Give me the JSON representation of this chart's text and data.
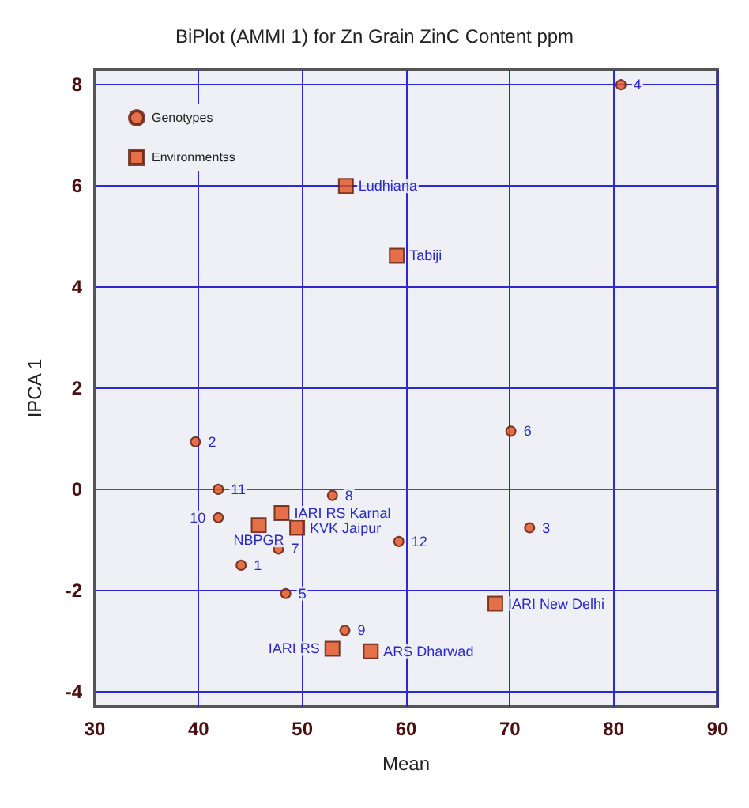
{
  "chart_data": {
    "type": "scatter",
    "title": "BiPlot (AMMI 1) for Zn Grain ZinC Content ppm",
    "xlabel": "Mean",
    "ylabel": "IPCA 1",
    "series": [
      {
        "name": "Genotypes",
        "color": "#e0501e",
        "marker": "circle",
        "x": [
          44.1,
          39.7,
          71.9,
          80.7,
          48.4,
          70.1,
          47.7,
          52.9,
          54.1,
          41.9,
          41.9,
          59.3
        ],
        "values": [
          -1.5,
          0.94,
          -0.76,
          8.0,
          -2.06,
          1.15,
          -1.18,
          -0.12,
          -2.79,
          -0.56,
          0.0,
          -1.03
        ]
      },
      {
        "name": "Environmentss",
        "color": "#e0501e",
        "marker": "square",
        "x": [
          54.2,
          59.1,
          48.0,
          45.8,
          49.5,
          68.6,
          52.9,
          56.6
        ],
        "values": [
          6.0,
          4.62,
          -0.47,
          -0.71,
          -0.76,
          -2.26,
          -3.15,
          -3.2
        ]
      }
    ],
    "annotations": [
      {
        "text": "1",
        "x": 44.1,
        "y": -1.5
      },
      {
        "text": "2",
        "x": 39.7,
        "y": 0.94
      },
      {
        "text": "3",
        "x": 71.9,
        "y": -0.76
      },
      {
        "text": "4",
        "x": 80.7,
        "y": 8.0
      },
      {
        "text": "5",
        "x": 48.4,
        "y": -2.06
      },
      {
        "text": "6",
        "x": 70.1,
        "y": 1.15
      },
      {
        "text": "7",
        "x": 47.7,
        "y": -1.18
      },
      {
        "text": "8",
        "x": 52.9,
        "y": -0.12
      },
      {
        "text": "9",
        "x": 54.1,
        "y": -2.79
      },
      {
        "text": "10",
        "x": 41.9,
        "y": -0.56
      },
      {
        "text": "11",
        "x": 41.9,
        "y": 0.0
      },
      {
        "text": "12",
        "x": 59.3,
        "y": -1.03
      },
      {
        "text": "Ludhiana",
        "x": 54.2,
        "y": 6.0
      },
      {
        "text": "Tabiji",
        "x": 59.1,
        "y": 4.62
      },
      {
        "text": "IARI RS Karnal",
        "x": 48.0,
        "y": -0.47
      },
      {
        "text": "NBPGR",
        "x": 45.8,
        "y": -0.71
      },
      {
        "text": "KVK Jaipur",
        "x": 49.5,
        "y": -0.76
      },
      {
        "text": "IARI New Delhi",
        "x": 68.6,
        "y": -2.26
      },
      {
        "text": "IARI RS",
        "x": 52.9,
        "y": -3.15
      },
      {
        "text": "ARS Dharwad",
        "x": 56.6,
        "y": -3.2
      }
    ],
    "xlim": [
      30,
      90
    ],
    "xticks": [
      30,
      40,
      50,
      60,
      70,
      80,
      90
    ],
    "ylim": [
      -4.3,
      8.3
    ],
    "yticks": [
      -4,
      -2,
      0,
      2,
      4,
      6,
      8
    ],
    "grid": true,
    "legend": "top left"
  }
}
